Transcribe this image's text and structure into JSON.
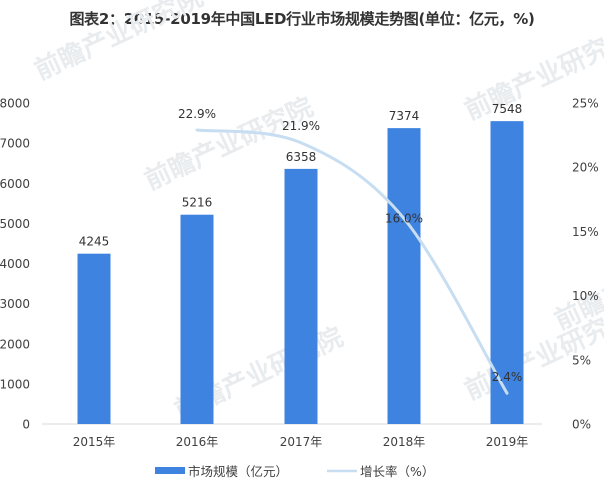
{
  "title": "图表2：2015-2019年中国LED行业市场规模走势图(单位：亿元，%)",
  "colors": {
    "bar": "#3f83e0",
    "line": "#c7ddf1",
    "axis_text": "#404040",
    "axis_line": "#d9d9d9"
  },
  "watermark": "前瞻产业研究院",
  "chart_data": {
    "type": "bar",
    "title": "图表2：2015-2019年中国LED行业市场规模走势图(单位：亿元，%)",
    "categories": [
      "2015年",
      "2016年",
      "2017年",
      "2018年",
      "2019年"
    ],
    "series": [
      {
        "name": "市场规模（亿元）",
        "type": "bar",
        "axis": "left",
        "values": [
          4245,
          5216,
          6358,
          7374,
          7548
        ],
        "labels": [
          "4245",
          "5216",
          "6358",
          "7374",
          "7548"
        ]
      },
      {
        "name": "增长率（%）",
        "type": "line",
        "axis": "right",
        "values": [
          null,
          22.9,
          21.9,
          16.0,
          2.4
        ],
        "labels": [
          "",
          "22.9%",
          "21.9%",
          "16.0%",
          "2.4%"
        ]
      }
    ],
    "y_left": {
      "ylim": [
        0,
        8000
      ],
      "ticks": [
        "0",
        "1000",
        "2000",
        "3000",
        "4000",
        "5000",
        "6000",
        "7000",
        "8000"
      ]
    },
    "y_right": {
      "ylim": [
        0,
        25
      ],
      "ticks": [
        "0%",
        "5%",
        "10%",
        "15%",
        "20%",
        "25%"
      ]
    },
    "xlabel": "",
    "ylabel": "",
    "grid": false,
    "legend": {
      "position": "bottom",
      "entries": [
        "市场规模（亿元）",
        "增长率（%）"
      ]
    }
  }
}
